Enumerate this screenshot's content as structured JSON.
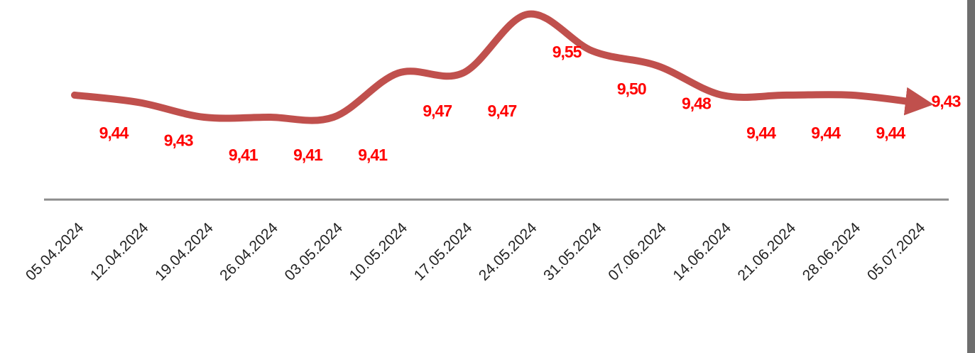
{
  "chart_data": {
    "type": "line",
    "categories": [
      "05.04.2024",
      "12.04.2024",
      "19.04.2024",
      "26.04.2024",
      "03.05.2024",
      "10.05.2024",
      "17.05.2024",
      "24.05.2024",
      "31.05.2024",
      "07.06.2024",
      "14.06.2024",
      "21.06.2024",
      "28.06.2024",
      "05.07.2024"
    ],
    "series": [
      {
        "color": "#c0504d",
        "values": [
          9.44,
          9.43,
          9.41,
          9.41,
          9.41,
          9.47,
          9.47,
          9.55,
          9.5,
          9.48,
          9.44,
          9.44,
          9.44,
          9.43
        ],
        "value_labels": [
          "9,44",
          "9,43",
          "9,41",
          "9,41",
          "9,41",
          "9,47",
          "9,47",
          "9,55",
          "9,50",
          "9,48",
          "9,44",
          "9,44",
          "9,44",
          "9,43"
        ]
      }
    ]
  }
}
